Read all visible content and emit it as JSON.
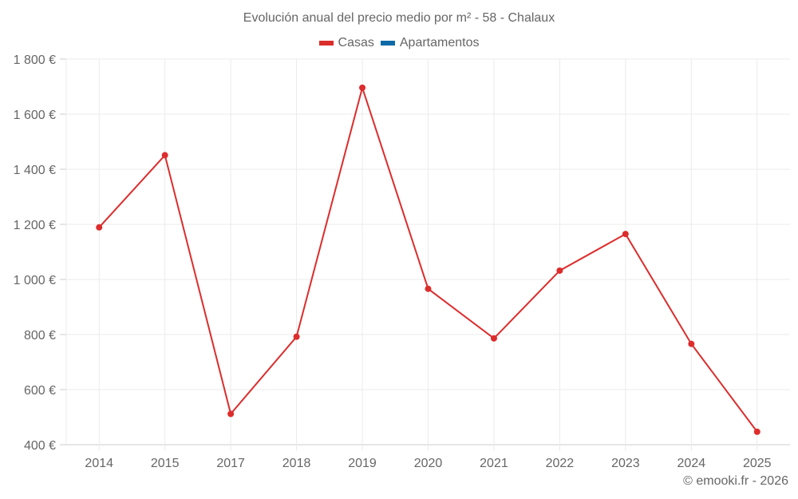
{
  "title": "Evolución anual del precio medio por m² - 58 - Chalaux",
  "legend": [
    {
      "label": "Casas",
      "color": "#dd2c2c"
    },
    {
      "label": "Apartamentos",
      "color": "#0d6aa8"
    }
  ],
  "credit": "© emooki.fr - 2026",
  "chart_data": {
    "type": "line",
    "title": "Evolución anual del precio medio por m² - 58 - Chalaux",
    "xlabel": "",
    "ylabel": "",
    "categories": [
      "2014",
      "2015",
      "2017",
      "2018",
      "2019",
      "2020",
      "2021",
      "2022",
      "2023",
      "2024",
      "2025"
    ],
    "series": [
      {
        "name": "Casas",
        "color": "#dd2c2c",
        "values": [
          1189,
          1451,
          512,
          792,
          1696,
          966,
          786,
          1032,
          1165,
          766,
          447
        ]
      },
      {
        "name": "Apartamentos",
        "color": "#0d6aa8",
        "values": []
      }
    ],
    "ylim": [
      400,
      1800
    ],
    "yticks": [
      400,
      600,
      800,
      1000,
      1200,
      1400,
      1600,
      1800
    ],
    "ytick_labels": [
      "400 €",
      "600 €",
      "800 €",
      "1 000 €",
      "1 200 €",
      "1 400 €",
      "1 600 €",
      "1 800 €"
    ],
    "grid": true,
    "legend_position": "top"
  }
}
